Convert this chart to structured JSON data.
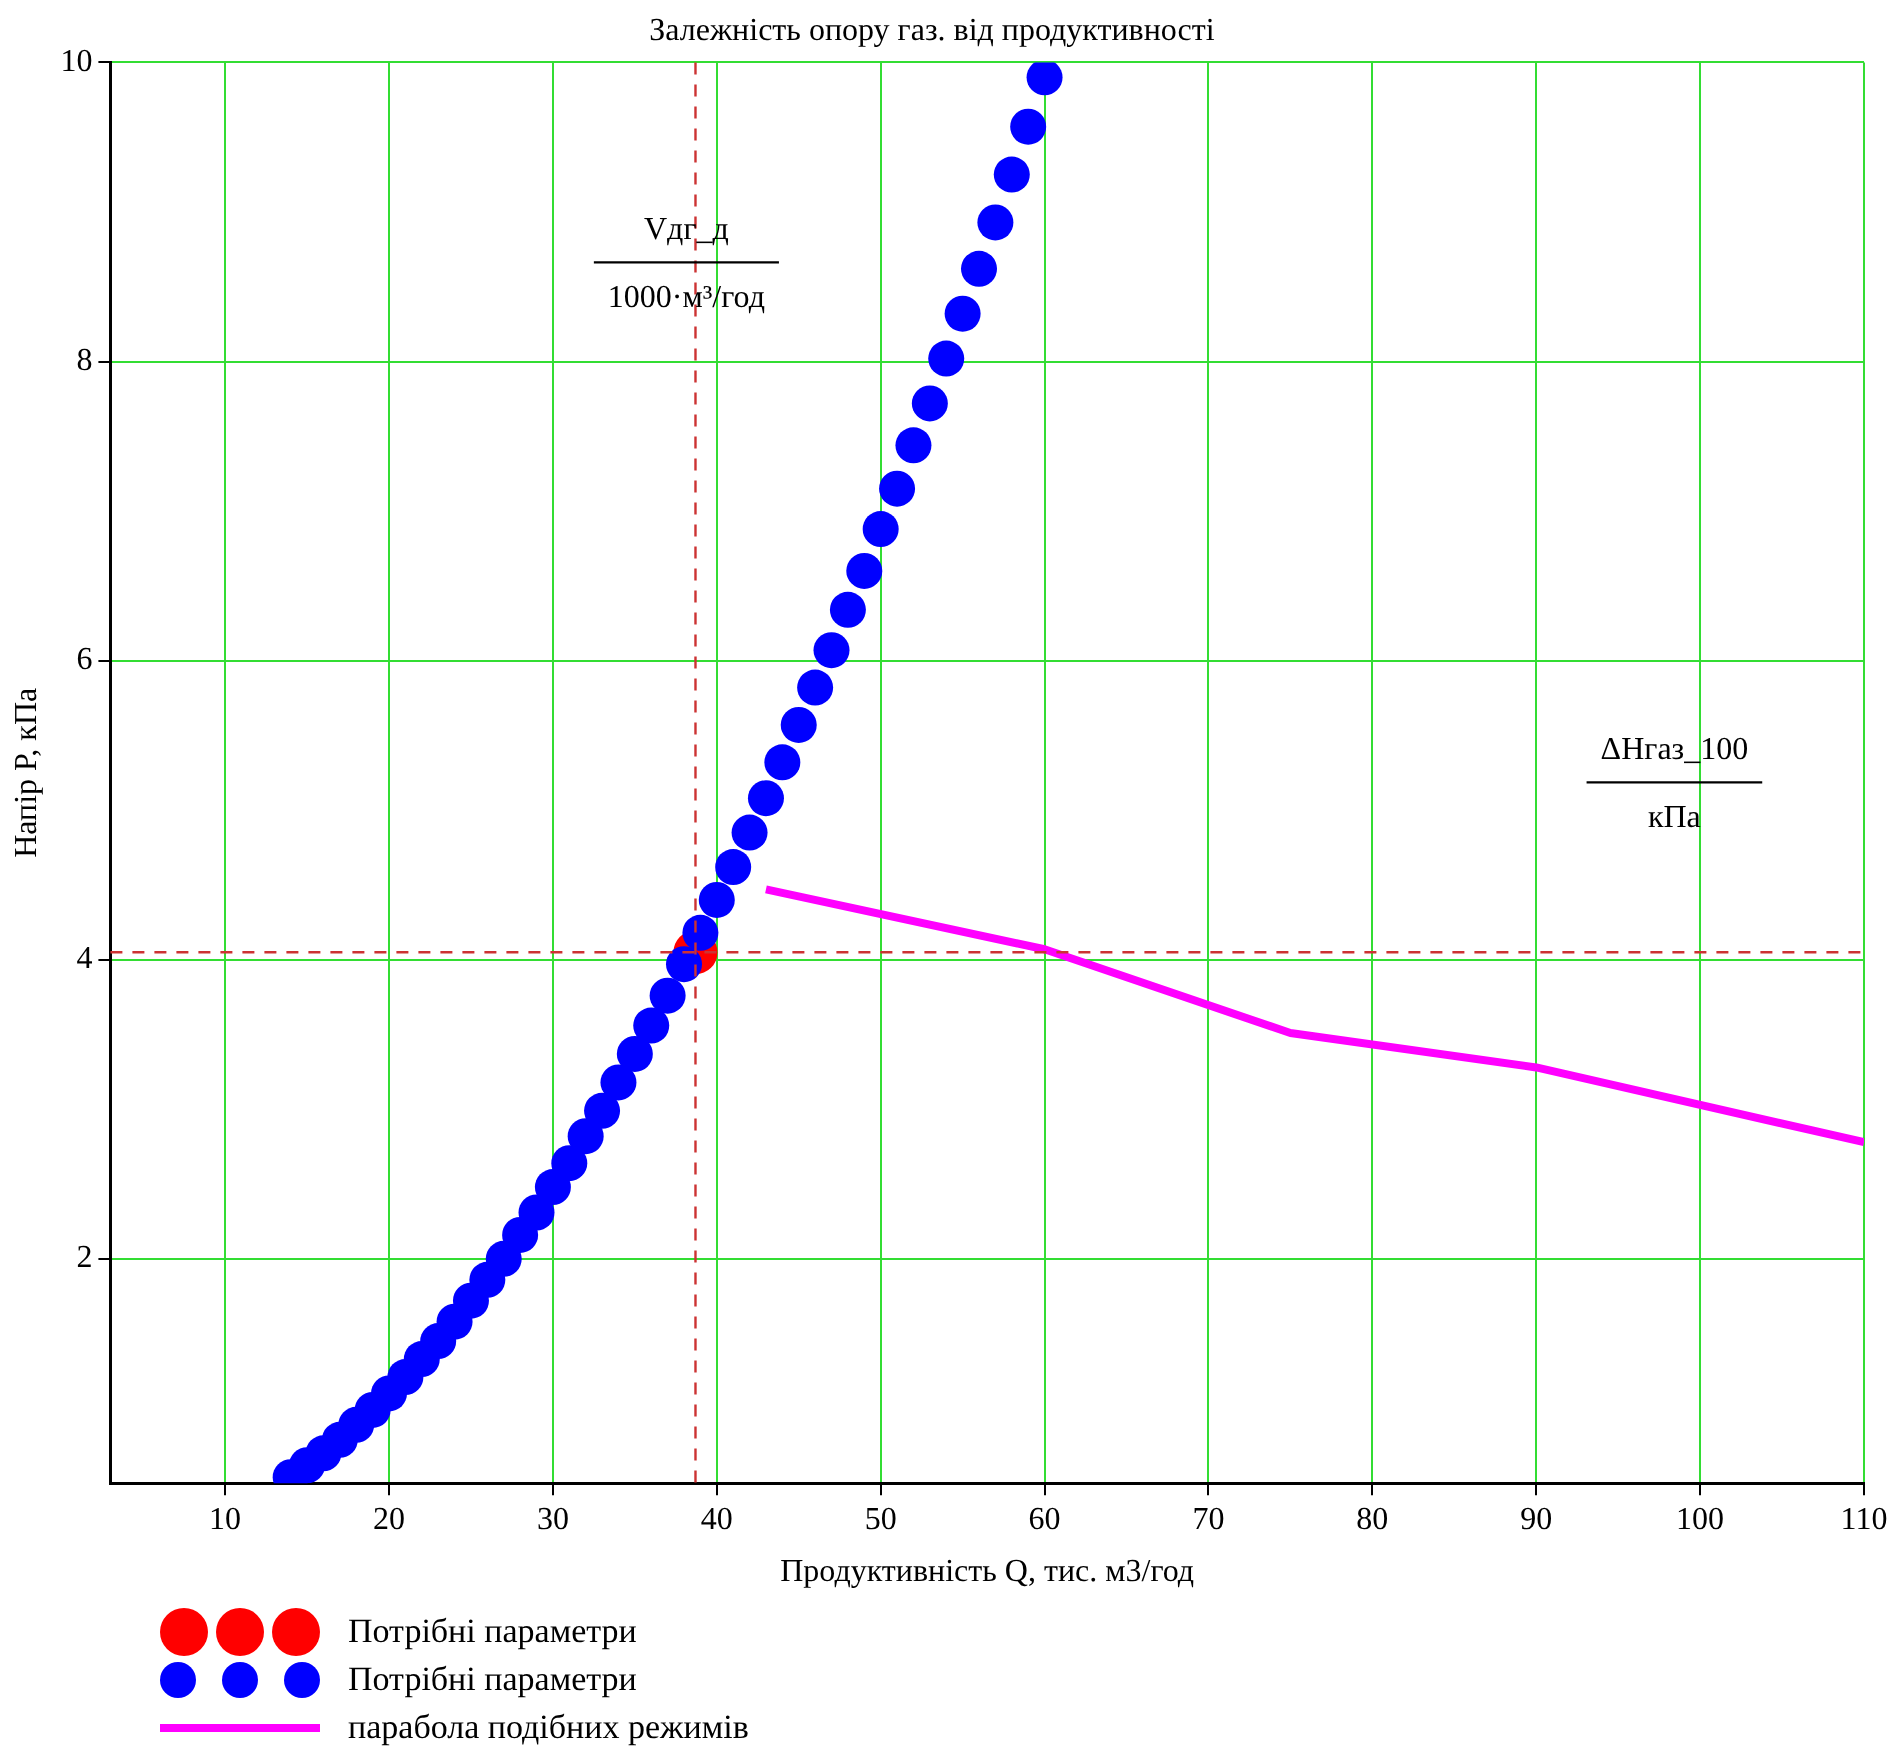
{
  "chart_data": {
    "type": "scatter",
    "title": "Залежність опору газ. від продуктивності",
    "xlabel": "Продуктивність Q, тис. м3/год",
    "ylabel": "Напір P, кПа",
    "xlim": [
      3,
      110
    ],
    "xticks": [
      10,
      20,
      30,
      40,
      50,
      60,
      70,
      80,
      90,
      100,
      110
    ],
    "ylim": [
      0.5,
      10
    ],
    "yticks": [
      2,
      4,
      6,
      8,
      10
    ],
    "grid": true,
    "legend": "bottom left",
    "series": [
      {
        "name": "Потрібні параметри",
        "marker": "circle",
        "color": "#ff0000",
        "x": [
          38.7
        ],
        "values": [
          4.05
        ]
      },
      {
        "name": "Потрібні параметри",
        "marker": "circle",
        "color": "#0000ff",
        "x": [
          14,
          15,
          16,
          17,
          18,
          19,
          20,
          21,
          22,
          23,
          24,
          25,
          26,
          27,
          28,
          29,
          30,
          31,
          32,
          33,
          34,
          35,
          36,
          37,
          38,
          39,
          40,
          41,
          42,
          43,
          44,
          45,
          46,
          47,
          48,
          49,
          50,
          51,
          52,
          53,
          54,
          55,
          56,
          57,
          58,
          59,
          60
        ],
        "values": [
          0.54,
          0.62,
          0.7,
          0.79,
          0.89,
          0.99,
          1.1,
          1.21,
          1.33,
          1.45,
          1.58,
          1.72,
          1.86,
          2.0,
          2.16,
          2.31,
          2.48,
          2.64,
          2.82,
          2.99,
          3.18,
          3.37,
          3.56,
          3.76,
          3.97,
          4.18,
          4.4,
          4.62,
          4.85,
          5.08,
          5.32,
          5.57,
          5.82,
          6.07,
          6.34,
          6.6,
          6.88,
          7.15,
          7.44,
          7.72,
          8.02,
          8.32,
          8.62,
          8.93,
          9.25,
          9.57,
          9.9
        ]
      },
      {
        "name": "парабола подібних режимів",
        "type": "line",
        "marker": "none",
        "color": "#ff00ff",
        "x": [
          43,
          60,
          75,
          90,
          110
        ],
        "values": [
          4.47,
          4.07,
          3.51,
          3.28,
          2.78
        ]
      }
    ],
    "ref_lines": [
      {
        "axis": "x",
        "value": 38.7,
        "color": "#cc3333",
        "line_style": "dashed"
      },
      {
        "axis": "y",
        "value": 4.05,
        "color": "#cc3333",
        "line_style": "dashed"
      }
    ],
    "annotations": [
      "Vдг_д",
      "1000·м³/год",
      "ΔHгаз_100",
      "кПа"
    ]
  }
}
